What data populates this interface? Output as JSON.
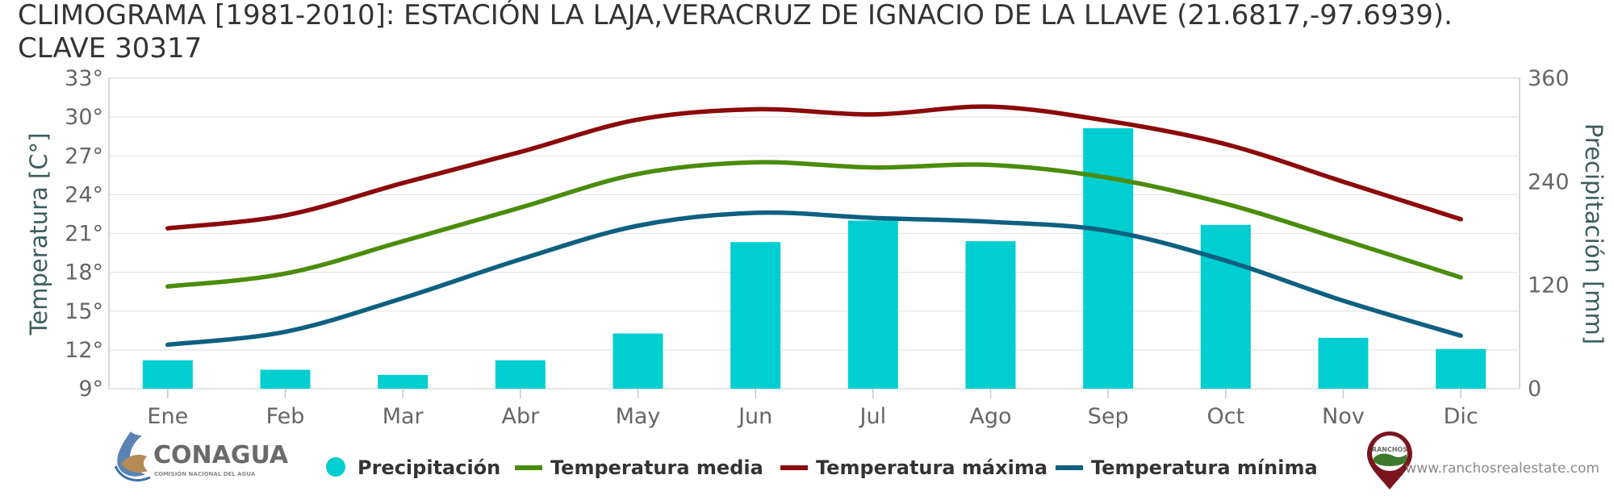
{
  "chart_data": {
    "type": "bar+line",
    "title_line1": "CLIMOGRAMA [1981-2010]: ESTACIÓN LA LAJA,VERACRUZ DE IGNACIO DE LA LLAVE (21.6817,-97.6939).",
    "title_line2": "CLAVE 30317",
    "categories": [
      "Ene",
      "Feb",
      "Mar",
      "Abr",
      "May",
      "Jun",
      "Jul",
      "Ago",
      "Sep",
      "Oct",
      "Nov",
      "Dic"
    ],
    "y_left": {
      "label": "Temperatura [C°]",
      "range": [
        9,
        33
      ],
      "ticks": [
        "9°",
        "12°",
        "15°",
        "18°",
        "21°",
        "24°",
        "27°",
        "30°",
        "33°"
      ]
    },
    "y_right": {
      "label": "Precipitación [mm]",
      "range": [
        0,
        360
      ],
      "ticks": [
        "0",
        "120",
        "240",
        "360"
      ]
    },
    "precipitation": {
      "name": "Precipitación",
      "color": "#00ced1",
      "values": [
        33,
        22,
        16,
        33,
        64,
        170,
        195,
        171,
        302,
        190,
        59,
        46
      ]
    },
    "series": [
      {
        "name": "Temperatura media",
        "color": "#4a8c0c",
        "values": [
          16.9,
          17.9,
          20.4,
          23.0,
          25.6,
          26.5,
          26.1,
          26.3,
          25.3,
          23.3,
          20.5,
          17.6
        ]
      },
      {
        "name": "Temperatura máxima",
        "color": "#8b0a0a",
        "values": [
          21.4,
          22.4,
          24.9,
          27.3,
          29.8,
          30.6,
          30.2,
          30.8,
          29.7,
          27.9,
          25.0,
          22.1
        ]
      },
      {
        "name": "Temperatura mínima",
        "color": "#0e6080",
        "values": [
          12.4,
          13.4,
          16.0,
          19.0,
          21.6,
          22.6,
          22.2,
          21.9,
          21.2,
          18.9,
          15.8,
          13.1
        ]
      }
    ],
    "grid": true,
    "legend_position": "bottom"
  },
  "logos": {
    "conagua_name": "CONAGUA",
    "conagua_subtitle": "COMISIÓN NACIONAL DEL AGUA",
    "ranchos_mark": "RANCHOS",
    "website": "www.ranchosrealestate.com"
  }
}
